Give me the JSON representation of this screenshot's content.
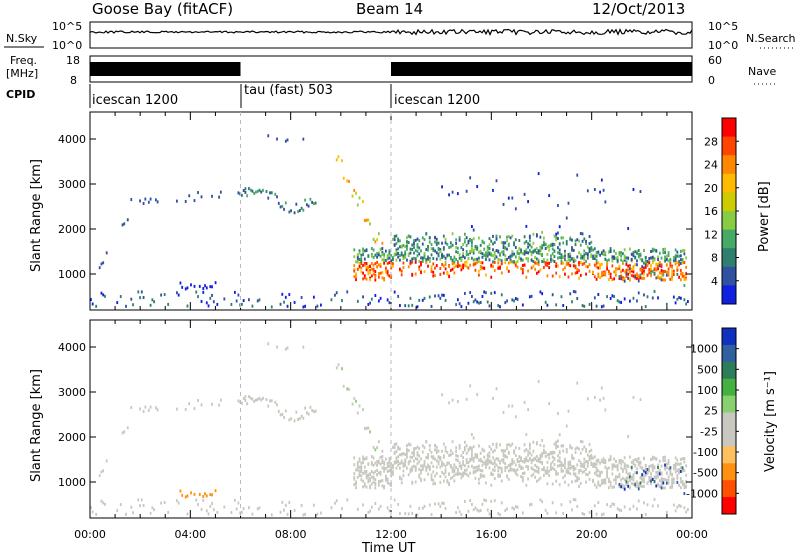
{
  "header": {
    "station": "Goose Bay (fitACF)",
    "beam": "Beam 14",
    "date": "12/Oct/2013"
  },
  "top_panels": {
    "nsky_label": "N.Sky",
    "nsky_ticks": [
      "10^5",
      "10^0"
    ],
    "nsearch_label": "N.Search",
    "nsearch_ticks": [
      "10^5",
      "10^0"
    ],
    "freq_label_1": "Freq.",
    "freq_label_2": "[MHz]",
    "freq_ticks": [
      "18",
      "8"
    ],
    "nave_label": "Nave",
    "nave_ticks": [
      "60",
      "0"
    ],
    "cpid_label": "CPID",
    "cpid_segments": [
      {
        "label": "icescan 1200",
        "start_hour": 0,
        "end_hour": 6
      },
      {
        "label": "tau (fast) 503",
        "start_hour": 6,
        "end_hour": 12
      },
      {
        "label": "icescan 1200",
        "start_hour": 12,
        "end_hour": 24
      }
    ]
  },
  "chart_data": [
    {
      "type": "heatmap",
      "name": "power",
      "ylabel": "Slant Range [km]",
      "yticks": [
        1000,
        2000,
        3000,
        4000
      ],
      "ylim": [
        200,
        4600
      ],
      "xlim_hours": [
        0,
        24
      ],
      "colorbar_label": "Power [dB]",
      "colorbar_ticks": [
        "28",
        "24",
        "20",
        "16",
        "12",
        "8",
        "4"
      ],
      "colorbar_colors": [
        "#ff0000",
        "#ff4400",
        "#ff8800",
        "#ffbb00",
        "#cccc00",
        "#88cc44",
        "#44aa66",
        "#2f7f6f",
        "#3050a0",
        "#1020e0"
      ]
    },
    {
      "type": "heatmap",
      "name": "velocity",
      "ylabel": "Slant Range [km]",
      "yticks": [
        1000,
        2000,
        3000,
        4000
      ],
      "ylim": [
        200,
        4600
      ],
      "xlim_hours": [
        0,
        24
      ],
      "xlabel": "Time UT",
      "xticks": [
        "00:00",
        "04:00",
        "08:00",
        "12:00",
        "16:00",
        "20:00",
        "00:00"
      ],
      "colorbar_label": "Velocity [m s⁻¹]",
      "colorbar_ticks": [
        "1000",
        "500",
        "100",
        "25",
        "-25",
        "-100",
        "-500",
        "-1000"
      ],
      "colorbar_colors": [
        "#1030c0",
        "#3060a0",
        "#2e7d5a",
        "#44b040",
        "#88d070",
        "#c8c8c0",
        "#c8c8c0",
        "#ffc060",
        "#ff9010",
        "#ff5000",
        "#ff0000"
      ]
    }
  ]
}
